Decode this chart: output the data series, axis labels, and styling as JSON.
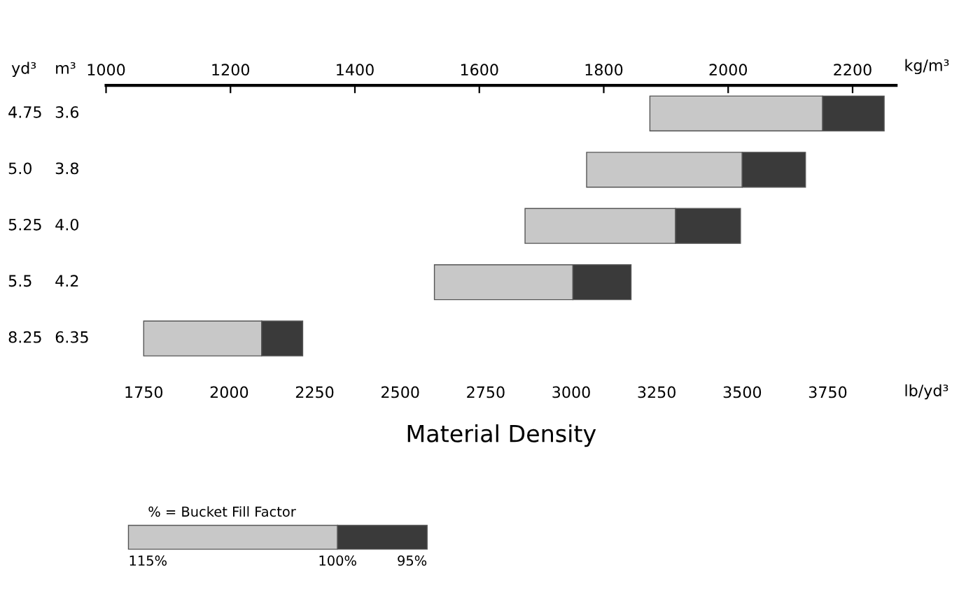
{
  "chart_data": {
    "type": "bar",
    "orientation": "horizontal",
    "categories": [
      "4.75",
      "5.0",
      "5.25",
      "5.5",
      "8.25"
    ],
    "y2_categories": [
      "3.6",
      "3.8",
      "4.0",
      "4.2",
      "6.35"
    ],
    "ylabel": "yd³",
    "y2label": "m³",
    "xlabel": "Material Density",
    "x2label": "kg/m³",
    "series": [
      {
        "color": "#c8c8c8",
        "base": [
          3230,
          3045,
          2865,
          2600,
          1750
        ],
        "values": [
          505,
          455,
          440,
          405,
          345
        ]
      },
      {
        "color": "#3a3a3a",
        "base": [
          3735,
          3500,
          3305,
          3005,
          2095
        ],
        "values": [
          180,
          185,
          190,
          170,
          120
        ]
      }
    ],
    "xlim": [
      1640,
      3950
    ],
    "xticks": [
      1750,
      2000,
      2250,
      2500,
      2750,
      3000,
      3250,
      3500,
      3750
    ],
    "x2lim": [
      1000,
      2270
    ],
    "x2ticks": [
      1000,
      1200,
      1400,
      1600,
      1800,
      2000,
      2200
    ],
    "legend_title": "% = Bucket Fill Factor",
    "annotations": [
      "lb/yd³",
      "115%",
      "100%",
      "95%"
    ],
    "grid": false
  }
}
